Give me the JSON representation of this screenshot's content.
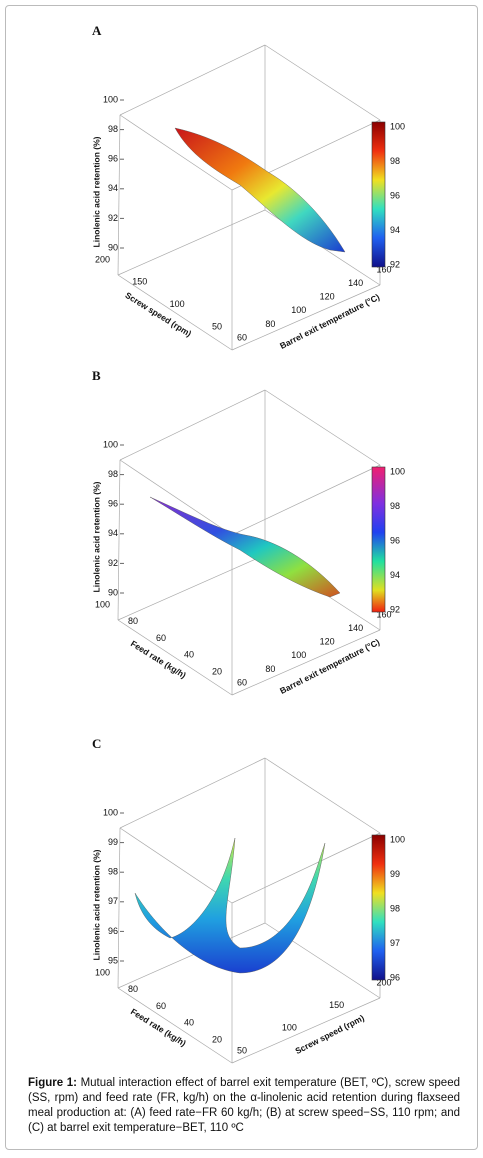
{
  "panels": [
    {
      "label": "A",
      "zlabel": "Linolenic acid retention (%)",
      "zticks": [
        100,
        98,
        96,
        94,
        92,
        90
      ],
      "ylabel": "Screw speed (rpm)",
      "yticks": [
        200,
        150,
        100,
        50
      ],
      "xlabel": "Barrel exit temperature (°C)",
      "xticks": [
        60,
        80,
        100,
        120,
        140,
        160
      ],
      "cticks": [
        100,
        98,
        96,
        94,
        92
      ]
    },
    {
      "label": "B",
      "zlabel": "Linolenic acid retention (%)",
      "zticks": [
        100,
        98,
        96,
        94,
        92,
        90
      ],
      "ylabel": "Feed rate (kg/h)",
      "yticks": [
        100,
        80,
        60,
        40,
        20
      ],
      "xlabel": "Barrel exit temperature (°C)",
      "xticks": [
        60,
        80,
        100,
        120,
        140,
        160
      ],
      "cticks": [
        100,
        98,
        96,
        94,
        92
      ]
    },
    {
      "label": "C",
      "zlabel": "Linolenic acid retention (%)",
      "zticks": [
        100,
        99,
        98,
        97,
        96,
        95
      ],
      "ylabel": "Feed rate (kg/h)",
      "yticks": [
        100,
        80,
        60,
        40,
        20
      ],
      "xlabel": "Screw speed (rpm)",
      "xticks": [
        50,
        100,
        150,
        200
      ],
      "cticks": [
        100,
        99,
        98,
        97,
        96
      ]
    }
  ],
  "caption": {
    "lead": "Figure 1:",
    "text": " Mutual interaction effect of barrel exit temperature (BET, ºC), screw speed (SS, rpm) and feed rate (FR, kg/h) on the α-linolenic acid retention during flaxseed meal production at: (A) feed rate−FR 60 kg/h; (B) at screw speed−SS, 110 rpm; and (C) at barrel exit temperature−BET, 110 ºC"
  }
}
